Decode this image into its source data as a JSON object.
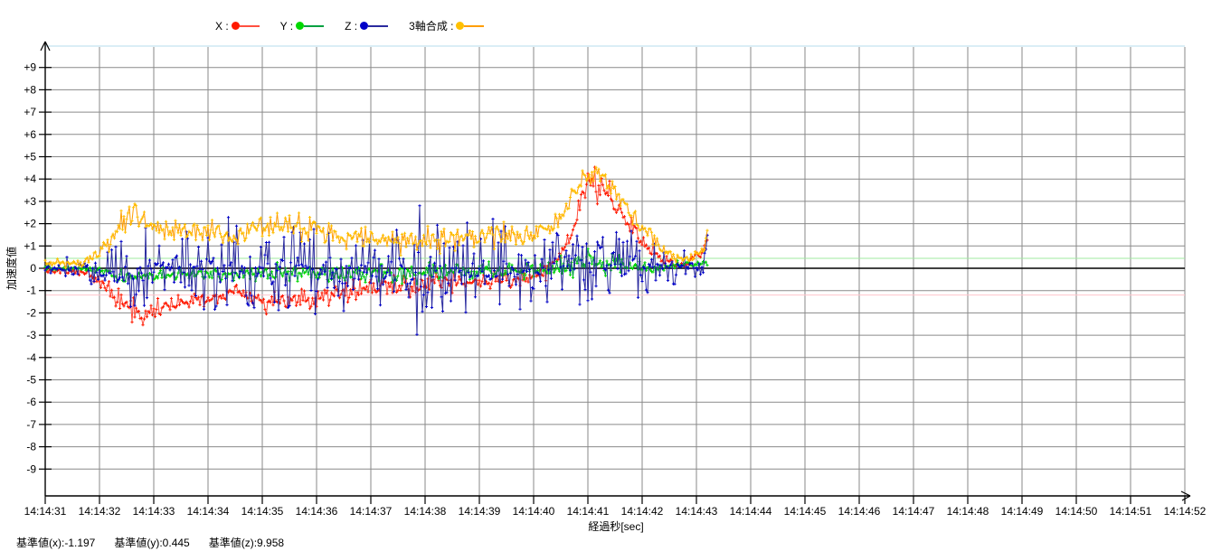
{
  "legend": {
    "items": [
      {
        "label": "X :"
      },
      {
        "label": "Y :"
      },
      {
        "label": "Z :"
      },
      {
        "label": "3軸合成 :"
      }
    ]
  },
  "status": {
    "items": [
      "基準値(x):-1.197",
      "基準値(y):0.445",
      "基準値(z):9.958"
    ]
  },
  "chart_data": {
    "type": "line",
    "title": "",
    "xlabel": "経過秒[sec]",
    "ylabel": "加速度値",
    "x_tick_labels": [
      "14:14:31",
      "14:14:32",
      "14:14:33",
      "14:14:34",
      "14:14:35",
      "14:14:36",
      "14:14:37",
      "14:14:38",
      "14:14:39",
      "14:14:40",
      "14:14:41",
      "14:14:42",
      "14:14:43",
      "14:14:44",
      "14:14:45",
      "14:14:46",
      "14:14:47",
      "14:14:48",
      "14:14:49",
      "14:14:50",
      "14:14:51",
      "14:14:52"
    ],
    "y_tick_values": [
      9,
      8,
      7,
      6,
      5,
      4,
      3,
      2,
      1,
      0,
      -1,
      -2,
      -3,
      -4,
      -5,
      -6,
      -7,
      -8,
      -9
    ],
    "y_tick_labels": [
      "+9",
      "+8",
      "+7",
      "+6",
      "+5",
      "+4",
      "+3",
      "+2",
      "+1",
      "0",
      "-1",
      "-2",
      "-3",
      "-4",
      "-5",
      "-6",
      "-7",
      "-8",
      "-9"
    ],
    "ylim": [
      -10.1,
      9.95
    ],
    "grid": true,
    "grid_color": "#8a8a8a",
    "zero_line_color": "#000000",
    "data_start_label": "14:14:31",
    "data_end_sec": 12.2,
    "sample_interval_sec": 0.025,
    "reference_lines": [
      {
        "label": "基準値(x)",
        "value": -1.197,
        "color": "#ffc4cc"
      },
      {
        "label": "基準値(y)",
        "value": 0.445,
        "color": "#9fe89f"
      },
      {
        "label": "基準値(z)",
        "value": 9.958,
        "color": "#b4dcec"
      }
    ],
    "series": [
      {
        "name": "X",
        "line_color": "#ff5040",
        "marker_color": "#ff1a00",
        "seed": 101,
        "noise": "normal",
        "keyframes": {
          "t": [
            0,
            0.8,
            1.1,
            1.4,
            1.8,
            2.2,
            2.7,
            3.2,
            3.5,
            3.9,
            4.4,
            5.0,
            5.5,
            6.0,
            6.5,
            7.0,
            7.5,
            8.0,
            8.5,
            9.0,
            9.4,
            9.7,
            10.0,
            10.3,
            10.6,
            10.9,
            11.2,
            11.5,
            11.8,
            12.0,
            12.1,
            12.2
          ],
          "mean": [
            -0.1,
            -0.15,
            -0.9,
            -1.7,
            -2.0,
            -1.6,
            -1.4,
            -1.5,
            -0.9,
            -1.4,
            -1.5,
            -1.3,
            -1.0,
            -0.9,
            -0.8,
            -0.7,
            -0.6,
            -0.6,
            -0.5,
            -0.4,
            0.2,
            1.5,
            3.9,
            3.5,
            2.6,
            1.6,
            0.8,
            0.2,
            0.1,
            0.6,
            0.7,
            1.3
          ],
          "amp": [
            0.15,
            0.2,
            0.5,
            0.6,
            0.65,
            0.55,
            0.5,
            0.5,
            0.4,
            0.55,
            0.55,
            0.55,
            0.5,
            0.5,
            0.5,
            0.5,
            0.45,
            0.45,
            0.45,
            0.4,
            0.5,
            0.6,
            0.7,
            0.7,
            0.6,
            0.6,
            0.5,
            0.25,
            0.15,
            0.2,
            0.2,
            0.1
          ]
        }
      },
      {
        "name": "Y",
        "line_color": "#00a040",
        "marker_color": "#00d800",
        "seed": 202,
        "noise": "normal",
        "keyframes": {
          "t": [
            0,
            0.9,
            1.3,
            2.0,
            3.0,
            4.0,
            5.0,
            6.0,
            7.0,
            8.0,
            9.0,
            9.6,
            10.1,
            10.6,
            11.1,
            11.6,
            12.0,
            12.2
          ],
          "mean": [
            0.0,
            -0.05,
            -0.3,
            -0.35,
            -0.25,
            -0.25,
            -0.2,
            -0.25,
            -0.2,
            -0.15,
            -0.1,
            0.15,
            0.3,
            0.15,
            0.0,
            0.1,
            0.2,
            0.25
          ],
          "amp": [
            0.12,
            0.15,
            0.3,
            0.35,
            0.35,
            0.4,
            0.4,
            0.45,
            0.4,
            0.4,
            0.4,
            0.5,
            0.6,
            0.45,
            0.3,
            0.2,
            0.15,
            0.1
          ]
        }
      },
      {
        "name": "Z",
        "line_color": "#2a2a9e",
        "marker_color": "#0000c8",
        "seed": 303,
        "noise": "heavy",
        "keyframes": {
          "t": [
            0,
            0.8,
            1.2,
            1.8,
            2.3,
            2.8,
            3.3,
            3.6,
            4.1,
            4.6,
            5.1,
            5.6,
            6.1,
            6.6,
            7.0,
            7.4,
            7.9,
            8.3,
            8.6,
            9.1,
            9.6,
            10.1,
            10.5,
            10.9,
            11.3,
            11.7,
            12.0,
            12.1,
            12.2
          ],
          "mean": [
            0,
            -0.05,
            -0.1,
            -0.1,
            0,
            0,
            0.1,
            0,
            -0.1,
            0,
            -0.1,
            -0.1,
            -0.1,
            -0.15,
            -0.2,
            -0.1,
            -0.1,
            -0.15,
            -0.1,
            0,
            0.1,
            0.15,
            0.05,
            0,
            0.05,
            0.1,
            0.1,
            0.1,
            0.8
          ],
          "amp": [
            0.25,
            0.35,
            0.8,
            0.9,
            1.1,
            1.0,
            1.3,
            1.1,
            1.2,
            1.0,
            1.1,
            1.0,
            1.0,
            1.3,
            1.5,
            1.1,
            1.1,
            1.5,
            1.0,
            0.9,
            1.0,
            1.1,
            0.9,
            1.0,
            0.6,
            0.4,
            0.35,
            0.3,
            0.5
          ]
        }
      },
      {
        "name": "3軸合成",
        "line_color": "#ff9d00",
        "marker_color": "#ffc000",
        "seed": 404,
        "noise": "normal",
        "keyframes": {
          "t": [
            0,
            0.7,
            1.0,
            1.4,
            1.7,
            2.1,
            2.6,
            3.1,
            3.4,
            3.8,
            4.3,
            5.0,
            5.4,
            5.8,
            6.3,
            6.8,
            7.3,
            7.8,
            8.3,
            8.8,
            9.2,
            9.5,
            9.8,
            10.0,
            10.3,
            10.6,
            10.9,
            11.2,
            11.5,
            11.75,
            11.95,
            12.15,
            12.2
          ],
          "mean": [
            0.2,
            0.25,
            0.8,
            2.0,
            2.4,
            1.8,
            1.7,
            1.8,
            1.2,
            1.9,
            2.0,
            1.8,
            1.5,
            1.6,
            1.2,
            1.3,
            1.2,
            1.3,
            1.5,
            1.3,
            1.7,
            2.2,
            3.6,
            4.4,
            3.9,
            3.2,
            2.1,
            1.3,
            0.6,
            0.35,
            0.55,
            0.9,
            1.7
          ],
          "amp": [
            0.15,
            0.2,
            0.5,
            0.7,
            0.8,
            0.55,
            0.5,
            0.55,
            0.4,
            0.6,
            0.6,
            0.6,
            0.6,
            0.7,
            0.5,
            0.6,
            0.6,
            0.6,
            0.7,
            0.6,
            0.5,
            0.5,
            0.7,
            0.8,
            0.7,
            0.6,
            0.7,
            0.5,
            0.3,
            0.15,
            0.2,
            0.2,
            0.1
          ]
        }
      }
    ]
  }
}
